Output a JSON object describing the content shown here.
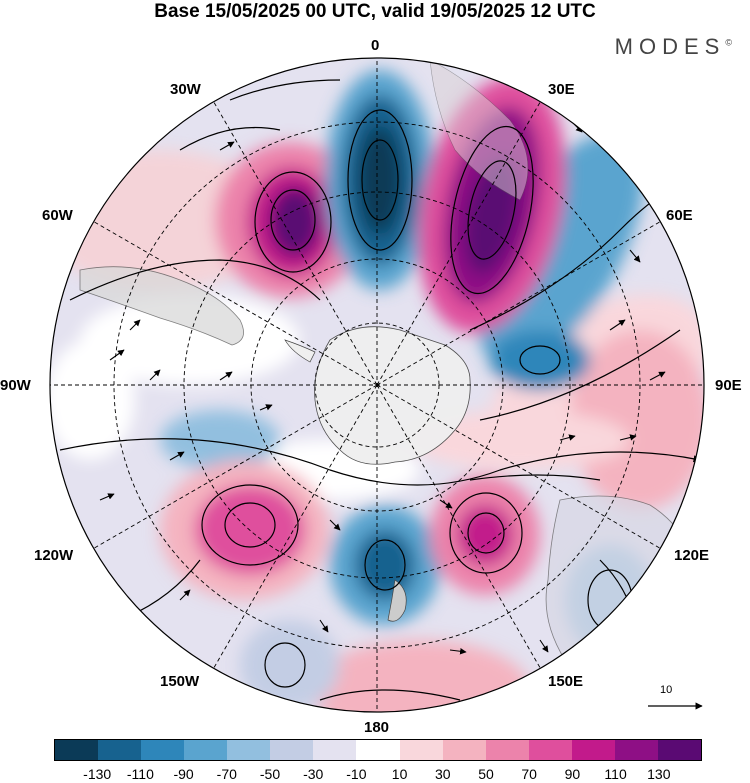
{
  "title": "Base 15/05/2025 00 UTC, valid 19/05/2025 12 UTC",
  "brand": "MODES",
  "brand_mark": "©",
  "longitude_labels": {
    "lon_0": "0",
    "lon_30e": "30E",
    "lon_60e": "60E",
    "lon_90e": "90E",
    "lon_120e": "120E",
    "lon_150e": "150E",
    "lon_180": "180",
    "lon_150w": "150W",
    "lon_120w": "120W",
    "lon_90w": "90W",
    "lon_60w": "60W",
    "lon_30w": "30W"
  },
  "reference_vector": "10",
  "colorbar": {
    "colors": [
      "#0b3a57",
      "#17628f",
      "#2e86ba",
      "#5aa4cf",
      "#92bfdf",
      "#c3cde4",
      "#e4e2f0",
      "#ffffff",
      "#f9d7dc",
      "#f4b3c0",
      "#ec83ab",
      "#df4f9d",
      "#c21a8b",
      "#8e0f85",
      "#5a0a73"
    ],
    "tick_labels": [
      "-130",
      "-110",
      "-90",
      "-70",
      "-50",
      "-30",
      "-10",
      "10",
      "30",
      "50",
      "70",
      "90",
      "110",
      "130"
    ]
  },
  "projection": "south-polar-stereographic",
  "fields": {
    "shaded": "anomaly",
    "vectors": "wind streamlines"
  }
}
